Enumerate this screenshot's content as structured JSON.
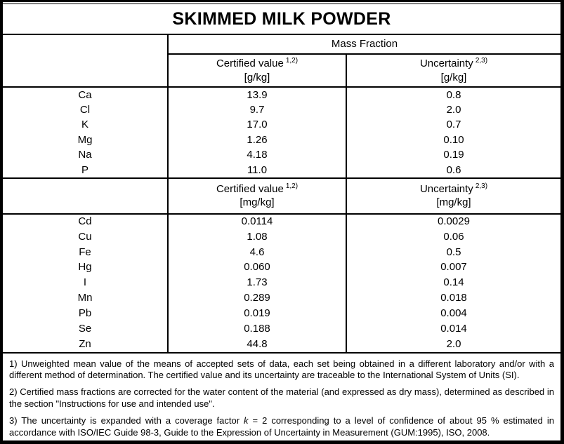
{
  "title": "SKIMMED MILK POWDER",
  "table": {
    "group_header": "Mass Fraction",
    "sections": [
      {
        "certified_label": "Certified value",
        "certified_sup": "1,2)",
        "certified_unit": "[g/kg]",
        "uncertainty_label": "Uncertainty",
        "uncertainty_sup": "2,3)",
        "uncertainty_unit": "[g/kg]",
        "rows": [
          {
            "element": "Ca",
            "certified": "13.9",
            "uncertainty": "0.8"
          },
          {
            "element": "Cl",
            "certified": "9.7",
            "uncertainty": "2.0"
          },
          {
            "element": "K",
            "certified": "17.0",
            "uncertainty": "0.7"
          },
          {
            "element": "Mg",
            "certified": "1.26",
            "uncertainty": "0.10"
          },
          {
            "element": "Na",
            "certified": "4.18",
            "uncertainty": "0.19"
          },
          {
            "element": "P",
            "certified": "11.0",
            "uncertainty": "0.6"
          }
        ]
      },
      {
        "certified_label": "Certified value",
        "certified_sup": "1,2)",
        "certified_unit": "[mg/kg]",
        "uncertainty_label": "Uncertainty",
        "uncertainty_sup": "2,3)",
        "uncertainty_unit": "[mg/kg]",
        "rows": [
          {
            "element": "Cd",
            "certified": "0.0114",
            "uncertainty": "0.0029"
          },
          {
            "element": "Cu",
            "certified": "1.08",
            "uncertainty": "0.06"
          },
          {
            "element": "Fe",
            "certified": "4.6",
            "uncertainty": "0.5"
          },
          {
            "element": "Hg",
            "certified": "0.060",
            "uncertainty": "0.007"
          },
          {
            "element": "I",
            "certified": "1.73",
            "uncertainty": "0.14"
          },
          {
            "element": "Mn",
            "certified": "0.289",
            "uncertainty": "0.018"
          },
          {
            "element": "Pb",
            "certified": "0.019",
            "uncertainty": "0.004"
          },
          {
            "element": "Se",
            "certified": "0.188",
            "uncertainty": "0.014"
          },
          {
            "element": "Zn",
            "certified": "44.8",
            "uncertainty": "2.0"
          }
        ]
      }
    ]
  },
  "footnotes": {
    "note1": "1) Unweighted mean value of the means of accepted sets of data, each set being obtained in a different laboratory and/or with a different method of determination. The certified value and its uncertainty are traceable to the International System of Units (SI).",
    "note2": "2) Certified mass fractions are corrected for the water content of the material (and expressed as dry mass), determined as described in the section \"Instructions for use and intended use\".",
    "note3_pre": "3) The uncertainty is expanded with a coverage factor ",
    "note3_k": "k",
    "note3_post": " = 2 corresponding to a level of confidence of about 95 % estimated in accordance with ISO/IEC Guide 98-3, Guide to the Expression of Uncertainty in Measurement (GUM:1995), ISO, 2008."
  },
  "colors": {
    "border": "#000000",
    "background": "#ffffff",
    "text": "#000000"
  }
}
